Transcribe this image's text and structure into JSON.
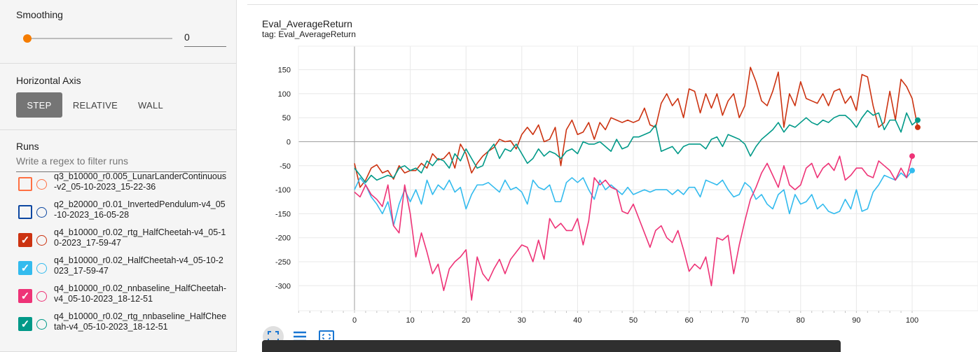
{
  "sidebar": {
    "smoothing": {
      "title": "Smoothing",
      "value": "0",
      "slider_fraction": 0.0
    },
    "horizontal_axis": {
      "title": "Horizontal Axis",
      "options": [
        "STEP",
        "RELATIVE",
        "WALL"
      ],
      "selected": "STEP"
    },
    "runs": {
      "title": "Runs",
      "filter_placeholder": "Write a regex to filter runs",
      "items": [
        {
          "label": "q3_b10000_r0.005_LunarLanderContinuous-v2_05-10-2023_15-22-36",
          "checked": false,
          "color": "#ff7043"
        },
        {
          "label": "q2_b20000_r0.01_InvertedPendulum-v4_05-10-2023_16-05-28",
          "checked": false,
          "color": "#0d47a1"
        },
        {
          "label": "q4_b10000_r0.02_rtg_HalfCheetah-v4_05-10-2023_17-59-47",
          "checked": true,
          "color": "#cc3311"
        },
        {
          "label": "q4_b10000_r0.02_HalfCheetah-v4_05-10-2023_17-59-47",
          "checked": true,
          "color": "#33bbee"
        },
        {
          "label": "q4_b10000_r0.02_nnbaseline_HalfCheetah-v4_05-10-2023_18-12-51",
          "checked": true,
          "color": "#ee3377"
        },
        {
          "label": "q4_b10000_r0.02_rtg_nnbaseline_HalfCheetah-v4_05-10-2023_18-12-51",
          "checked": true,
          "color": "#009988"
        }
      ]
    }
  },
  "card": {
    "title": "Eval_AverageReturn",
    "tag": "tag: Eval_AverageReturn",
    "tools": [
      "fullscreen-icon",
      "lines-icon",
      "fit-domain-icon"
    ]
  },
  "chart_data": {
    "type": "line",
    "xlim": [
      -10,
      100
    ],
    "ylim": [
      -350,
      170
    ],
    "x_ticks": [
      0,
      10,
      20,
      30,
      40,
      50,
      60,
      70,
      80,
      90,
      100
    ],
    "y_ticks": [
      -300,
      -250,
      -200,
      -150,
      -100,
      -50,
      0,
      50,
      100,
      150
    ],
    "grid": true,
    "series": [
      {
        "color": "#cc3311",
        "values": [
          -45,
          -95,
          -80,
          -55,
          -48,
          -65,
          -60,
          -78,
          -50,
          -65,
          -60,
          -60,
          -45,
          -55,
          -25,
          -38,
          -35,
          -22,
          -55,
          -5,
          -25,
          -65,
          -45,
          -30,
          -20,
          -12,
          5,
          0,
          2,
          -15,
          15,
          30,
          15,
          35,
          0,
          5,
          30,
          -50,
          25,
          45,
          15,
          20,
          40,
          5,
          40,
          25,
          50,
          45,
          40,
          45,
          40,
          45,
          70,
          35,
          30,
          80,
          100,
          75,
          90,
          50,
          110,
          105,
          60,
          100,
          70,
          100,
          55,
          85,
          100,
          50,
          75,
          155,
          125,
          85,
          75,
          105,
          145,
          30,
          100,
          75,
          125,
          90,
          85,
          80,
          100,
          75,
          105,
          110,
          80,
          95,
          65,
          140,
          135,
          75,
          30,
          40,
          105,
          45,
          130,
          115,
          90,
          30
        ],
        "x_start": 0
      },
      {
        "color": "#33bbee",
        "values": [
          -100,
          -75,
          -90,
          -115,
          -130,
          -150,
          -125,
          -175,
          -130,
          -100,
          -125,
          -100,
          -130,
          -80,
          -110,
          -90,
          -100,
          -80,
          -105,
          -95,
          -140,
          -110,
          -90,
          -90,
          -85,
          -95,
          -105,
          -80,
          -100,
          -95,
          -105,
          -130,
          -80,
          -95,
          -100,
          -90,
          -125,
          -125,
          -85,
          -75,
          -85,
          -75,
          -100,
          -120,
          -80,
          -100,
          -90,
          -100,
          -110,
          -95,
          -110,
          -105,
          -100,
          -105,
          -100,
          -100,
          -100,
          -110,
          -100,
          -110,
          -95,
          -95,
          -115,
          -80,
          -85,
          -90,
          -80,
          -100,
          -115,
          -110,
          -85,
          -95,
          -120,
          -110,
          -130,
          -140,
          -110,
          -100,
          -150,
          -110,
          -130,
          -125,
          -110,
          -140,
          -130,
          -145,
          -150,
          -145,
          -120,
          -140,
          -100,
          -145,
          -140,
          -105,
          -90,
          -70,
          -75,
          -80,
          -65,
          -75,
          -60
        ],
        "x_start": 0
      },
      {
        "color": "#ee3377",
        "values": [
          -105,
          -115,
          -90,
          -110,
          -120,
          -135,
          -90,
          -175,
          -190,
          -90,
          -150,
          -240,
          -190,
          -230,
          -275,
          -255,
          -310,
          -265,
          -250,
          -240,
          -225,
          -330,
          -240,
          -275,
          -290,
          -265,
          -245,
          -275,
          -245,
          -230,
          -215,
          -220,
          -250,
          -205,
          -245,
          -160,
          -180,
          -170,
          -185,
          -185,
          -160,
          -215,
          -165,
          -75,
          -90,
          -80,
          -95,
          -100,
          -145,
          -150,
          -130,
          -160,
          -190,
          -220,
          -185,
          -175,
          -200,
          -210,
          -185,
          -225,
          -270,
          -255,
          -265,
          -240,
          -300,
          -200,
          -205,
          -195,
          -275,
          -215,
          -165,
          -120,
          -95,
          -65,
          -45,
          -70,
          -95,
          -50,
          -90,
          -100,
          -90,
          -55,
          -45,
          -75,
          -55,
          -45,
          -60,
          -30,
          -80,
          -70,
          -55,
          -55,
          -70,
          -75,
          -40,
          -50,
          -60,
          -80,
          -55,
          -75,
          -30
        ],
        "x_start": 0
      },
      {
        "color": "#009988",
        "values": [
          -55,
          -70,
          -85,
          -70,
          -80,
          -75,
          -70,
          -75,
          -55,
          -50,
          -60,
          -55,
          -65,
          -40,
          -50,
          -35,
          -40,
          -55,
          -25,
          -40,
          -15,
          -35,
          -55,
          -50,
          -20,
          -5,
          -35,
          -15,
          -20,
          -5,
          -25,
          -45,
          -35,
          -15,
          -30,
          -20,
          -25,
          -35,
          -20,
          -15,
          -25,
          0,
          -5,
          -5,
          0,
          -10,
          -20,
          5,
          -15,
          -10,
          10,
          10,
          15,
          20,
          35,
          -20,
          -15,
          -10,
          -25,
          -10,
          -5,
          -5,
          -5,
          -15,
          5,
          10,
          -10,
          15,
          10,
          5,
          -5,
          -30,
          -10,
          5,
          15,
          25,
          40,
          20,
          35,
          30,
          40,
          50,
          40,
          35,
          45,
          40,
          50,
          55,
          55,
          45,
          30,
          50,
          65,
          55,
          60,
          25,
          45,
          45,
          20,
          60,
          35,
          45
        ],
        "x_start": 0
      }
    ]
  }
}
